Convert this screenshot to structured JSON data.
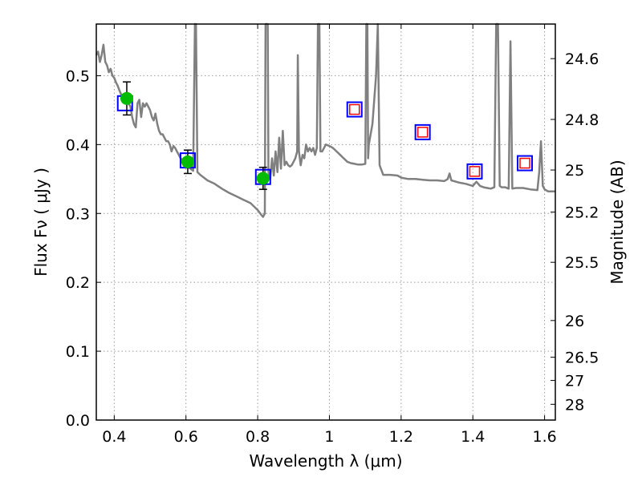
{
  "chart_data": {
    "type": "scatter",
    "title": "",
    "xlabel": "Wavelength  λ (μm)",
    "ylabel": "Flux  Fν  ( μJy )",
    "ylabel2": "Magnitude (AB)",
    "xlim": [
      0.35,
      1.63
    ],
    "ylim": [
      0.0,
      0.575
    ],
    "grid": true,
    "x_ticks": [
      {
        "value": 0.4,
        "label": "0.4"
      },
      {
        "value": 0.6,
        "label": "0.6"
      },
      {
        "value": 0.8,
        "label": "0.8"
      },
      {
        "value": 1.0,
        "label": "1"
      },
      {
        "value": 1.2,
        "label": "1.2"
      },
      {
        "value": 1.4,
        "label": "1.4"
      },
      {
        "value": 1.6,
        "label": "1.6"
      }
    ],
    "y_ticks": [
      {
        "value": 0.0,
        "label": "0.0"
      },
      {
        "value": 0.1,
        "label": "0.1"
      },
      {
        "value": 0.2,
        "label": "0.2"
      },
      {
        "value": 0.3,
        "label": "0.3"
      },
      {
        "value": 0.4,
        "label": "0.4"
      },
      {
        "value": 0.5,
        "label": "0.5"
      }
    ],
    "mag_ticks": [
      {
        "value": 24.6,
        "label": "24.6"
      },
      {
        "value": 24.8,
        "label": "24.8"
      },
      {
        "value": 25.0,
        "label": "25"
      },
      {
        "value": 25.2,
        "label": "25.2"
      },
      {
        "value": 25.5,
        "label": "25.5"
      },
      {
        "value": 26.0,
        "label": "26"
      },
      {
        "value": 26.5,
        "label": "26.5"
      },
      {
        "value": 27.0,
        "label": "27"
      },
      {
        "value": 28.0,
        "label": "28"
      }
    ],
    "series": [
      {
        "kind": "line",
        "color": "#808080",
        "points": [
          [
            0.35,
            0.53
          ],
          [
            0.355,
            0.535
          ],
          [
            0.36,
            0.52
          ],
          [
            0.365,
            0.53
          ],
          [
            0.37,
            0.545
          ],
          [
            0.375,
            0.52
          ],
          [
            0.38,
            0.515
          ],
          [
            0.385,
            0.505
          ],
          [
            0.39,
            0.51
          ],
          [
            0.395,
            0.5
          ],
          [
            0.4,
            0.497
          ],
          [
            0.405,
            0.49
          ],
          [
            0.41,
            0.485
          ],
          [
            0.415,
            0.478
          ],
          [
            0.42,
            0.472
          ],
          [
            0.425,
            0.468
          ],
          [
            0.43,
            0.47
          ],
          [
            0.435,
            0.463
          ],
          [
            0.44,
            0.46
          ],
          [
            0.445,
            0.455
          ],
          [
            0.45,
            0.44
          ],
          [
            0.455,
            0.43
          ],
          [
            0.46,
            0.425
          ],
          [
            0.465,
            0.46
          ],
          [
            0.47,
            0.465
          ],
          [
            0.475,
            0.44
          ],
          [
            0.48,
            0.46
          ],
          [
            0.485,
            0.455
          ],
          [
            0.49,
            0.46
          ],
          [
            0.495,
            0.455
          ],
          [
            0.5,
            0.45
          ],
          [
            0.505,
            0.44
          ],
          [
            0.51,
            0.435
          ],
          [
            0.515,
            0.445
          ],
          [
            0.52,
            0.43
          ],
          [
            0.525,
            0.42
          ],
          [
            0.53,
            0.415
          ],
          [
            0.535,
            0.415
          ],
          [
            0.54,
            0.41
          ],
          [
            0.545,
            0.405
          ],
          [
            0.55,
            0.405
          ],
          [
            0.555,
            0.4
          ],
          [
            0.56,
            0.39
          ],
          [
            0.565,
            0.398
          ],
          [
            0.57,
            0.395
          ],
          [
            0.575,
            0.39
          ],
          [
            0.58,
            0.385
          ],
          [
            0.585,
            0.38
          ],
          [
            0.59,
            0.378
          ],
          [
            0.595,
            0.372
          ],
          [
            0.6,
            0.37
          ],
          [
            0.61,
            0.366
          ],
          [
            0.62,
            0.362
          ],
          [
            0.625,
            0.58
          ],
          [
            0.628,
            0.58
          ],
          [
            0.632,
            0.36
          ],
          [
            0.64,
            0.356
          ],
          [
            0.66,
            0.348
          ],
          [
            0.68,
            0.343
          ],
          [
            0.7,
            0.336
          ],
          [
            0.72,
            0.33
          ],
          [
            0.74,
            0.325
          ],
          [
            0.76,
            0.32
          ],
          [
            0.78,
            0.315
          ],
          [
            0.8,
            0.305
          ],
          [
            0.81,
            0.298
          ],
          [
            0.815,
            0.295
          ],
          [
            0.82,
            0.3
          ],
          [
            0.822,
            0.58
          ],
          [
            0.828,
            0.58
          ],
          [
            0.83,
            0.36
          ],
          [
            0.835,
            0.35
          ],
          [
            0.84,
            0.38
          ],
          [
            0.845,
            0.355
          ],
          [
            0.85,
            0.39
          ],
          [
            0.855,
            0.36
          ],
          [
            0.86,
            0.41
          ],
          [
            0.865,
            0.365
          ],
          [
            0.87,
            0.42
          ],
          [
            0.875,
            0.37
          ],
          [
            0.88,
            0.375
          ],
          [
            0.885,
            0.37
          ],
          [
            0.89,
            0.368
          ],
          [
            0.895,
            0.37
          ],
          [
            0.9,
            0.375
          ],
          [
            0.905,
            0.38
          ],
          [
            0.91,
            0.39
          ],
          [
            0.912,
            0.53
          ],
          [
            0.915,
            0.39
          ],
          [
            0.92,
            0.37
          ],
          [
            0.925,
            0.385
          ],
          [
            0.93,
            0.38
          ],
          [
            0.935,
            0.4
          ],
          [
            0.94,
            0.39
          ],
          [
            0.945,
            0.395
          ],
          [
            0.95,
            0.39
          ],
          [
            0.955,
            0.395
          ],
          [
            0.96,
            0.385
          ],
          [
            0.965,
            0.395
          ],
          [
            0.968,
            0.58
          ],
          [
            0.972,
            0.58
          ],
          [
            0.975,
            0.39
          ],
          [
            0.98,
            0.39
          ],
          [
            0.99,
            0.4
          ],
          [
            1.0,
            0.398
          ],
          [
            1.01,
            0.395
          ],
          [
            1.02,
            0.39
          ],
          [
            1.03,
            0.385
          ],
          [
            1.04,
            0.38
          ],
          [
            1.05,
            0.375
          ],
          [
            1.06,
            0.373
          ],
          [
            1.07,
            0.372
          ],
          [
            1.08,
            0.371
          ],
          [
            1.09,
            0.371
          ],
          [
            1.1,
            0.372
          ],
          [
            1.103,
            0.58
          ],
          [
            1.106,
            0.58
          ],
          [
            1.108,
            0.38
          ],
          [
            1.11,
            0.4
          ],
          [
            1.12,
            0.43
          ],
          [
            1.13,
            0.5
          ],
          [
            1.135,
            0.58
          ],
          [
            1.14,
            0.37
          ],
          [
            1.15,
            0.356
          ],
          [
            1.17,
            0.356
          ],
          [
            1.19,
            0.355
          ],
          [
            1.2,
            0.352
          ],
          [
            1.22,
            0.35
          ],
          [
            1.24,
            0.35
          ],
          [
            1.26,
            0.349
          ],
          [
            1.28,
            0.348
          ],
          [
            1.3,
            0.348
          ],
          [
            1.32,
            0.347
          ],
          [
            1.33,
            0.35
          ],
          [
            1.335,
            0.358
          ],
          [
            1.34,
            0.348
          ],
          [
            1.36,
            0.345
          ],
          [
            1.38,
            0.343
          ],
          [
            1.4,
            0.34
          ],
          [
            1.41,
            0.346
          ],
          [
            1.42,
            0.34
          ],
          [
            1.43,
            0.338
          ],
          [
            1.44,
            0.337
          ],
          [
            1.45,
            0.336
          ],
          [
            1.46,
            0.338
          ],
          [
            1.465,
            0.58
          ],
          [
            1.47,
            0.58
          ],
          [
            1.475,
            0.34
          ],
          [
            1.48,
            0.338
          ],
          [
            1.49,
            0.338
          ],
          [
            1.5,
            0.336
          ],
          [
            1.505,
            0.55
          ],
          [
            1.51,
            0.336
          ],
          [
            1.52,
            0.337
          ],
          [
            1.54,
            0.337
          ],
          [
            1.56,
            0.335
          ],
          [
            1.58,
            0.334
          ],
          [
            1.585,
            0.36
          ],
          [
            1.59,
            0.405
          ],
          [
            1.595,
            0.34
          ],
          [
            1.6,
            0.335
          ],
          [
            1.61,
            0.332
          ],
          [
            1.63,
            0.332
          ]
        ]
      },
      {
        "kind": "open-square",
        "color": "#0000ff",
        "points": [
          [
            0.43,
            0.46
          ],
          [
            0.605,
            0.377
          ],
          [
            0.815,
            0.353
          ],
          [
            1.07,
            0.451
          ],
          [
            1.26,
            0.418
          ],
          [
            1.405,
            0.361
          ],
          [
            1.545,
            0.373
          ]
        ]
      },
      {
        "kind": "open-square",
        "color": "#ff0000",
        "points": [
          [
            1.07,
            0.451
          ],
          [
            1.26,
            0.418
          ],
          [
            1.405,
            0.361
          ],
          [
            1.545,
            0.373
          ]
        ]
      },
      {
        "kind": "filled-circle",
        "color": "#00bb00",
        "error_color": "#000000",
        "points": [
          {
            "x": 0.435,
            "y": 0.467,
            "err": 0.024
          },
          {
            "x": 0.605,
            "y": 0.375,
            "err": 0.017
          },
          {
            "x": 0.815,
            "y": 0.351,
            "err": 0.016
          }
        ]
      }
    ]
  }
}
